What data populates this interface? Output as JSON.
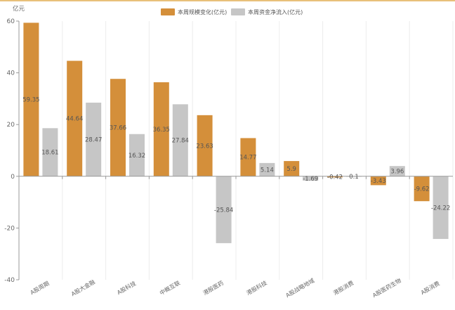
{
  "chart_data": {
    "type": "bar",
    "y_unit": "亿元",
    "ylim": [
      -40,
      60
    ],
    "y_ticks": [
      60,
      40,
      20,
      0,
      -20,
      -40
    ],
    "categories": [
      "A股周期",
      "A股大金融",
      "A股科技",
      "中概互联",
      "港股医药",
      "港股科技",
      "A股战略地域",
      "港股消费",
      "A股医药生物",
      "A股消费"
    ],
    "series": [
      {
        "name": "本周规模变化(亿元)",
        "color": "#d48f3a",
        "values": [
          59.35,
          44.64,
          37.66,
          36.35,
          23.63,
          14.77,
          5.9,
          -0.42,
          -3.43,
          -9.62
        ]
      },
      {
        "name": "本周资金净流入(亿元)",
        "color": "#c6c6c6",
        "values": [
          18.61,
          28.47,
          16.32,
          27.84,
          -25.84,
          5.14,
          -1.69,
          0.1,
          3.96,
          -24.22
        ]
      }
    ],
    "data_labels": [
      [
        "59.35",
        "44.64",
        "37.66",
        "36.35",
        "23.63",
        "14.77",
        "5.9",
        "-0.42",
        "-3.43",
        "-9.62"
      ],
      [
        "18.61",
        "28.47",
        "16.32",
        "27.84",
        "-25.84",
        "5.14",
        "-1.69",
        "0.1",
        "3.96",
        "-24.22"
      ]
    ],
    "grid": "vertical",
    "legend_position": "top"
  }
}
